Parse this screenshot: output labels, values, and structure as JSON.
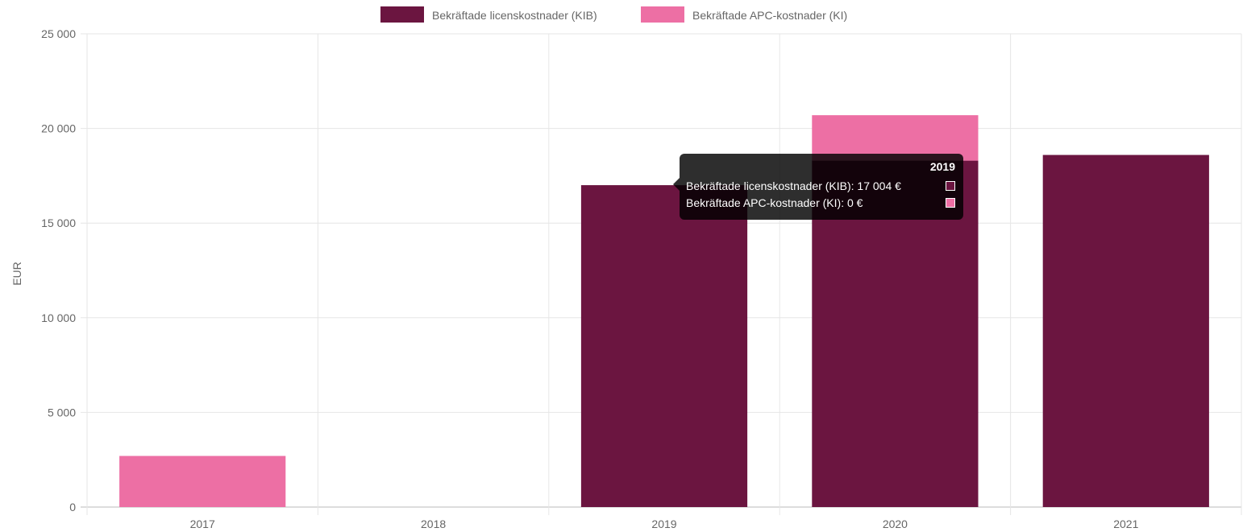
{
  "chart_data": {
    "type": "bar",
    "categories": [
      "2017",
      "2018",
      "2019",
      "2020",
      "2021"
    ],
    "series": [
      {
        "name": "Bekräftade licenskostnader (KIB)",
        "color": "#6b1540",
        "values": [
          0,
          0,
          17004,
          18300,
          18600
        ]
      },
      {
        "name": "Bekräftade APC-kostnader (KI)",
        "color": "#ed6fa4",
        "values": [
          2700,
          0,
          0,
          2400,
          0
        ]
      }
    ],
    "stacked": true,
    "ylabel": "EUR",
    "ylim": [
      0,
      25000
    ],
    "yticks": [
      "0",
      "5 000",
      "10 000",
      "15 000",
      "20 000",
      "25 000"
    ],
    "grid": true,
    "legend_position": "top-center",
    "tooltip": {
      "title": "2019",
      "rows": [
        "Bekräftade licenskostnader (KIB): 17 004 €",
        "Bekräftade APC-kostnader (KI): 0 €"
      ]
    }
  }
}
